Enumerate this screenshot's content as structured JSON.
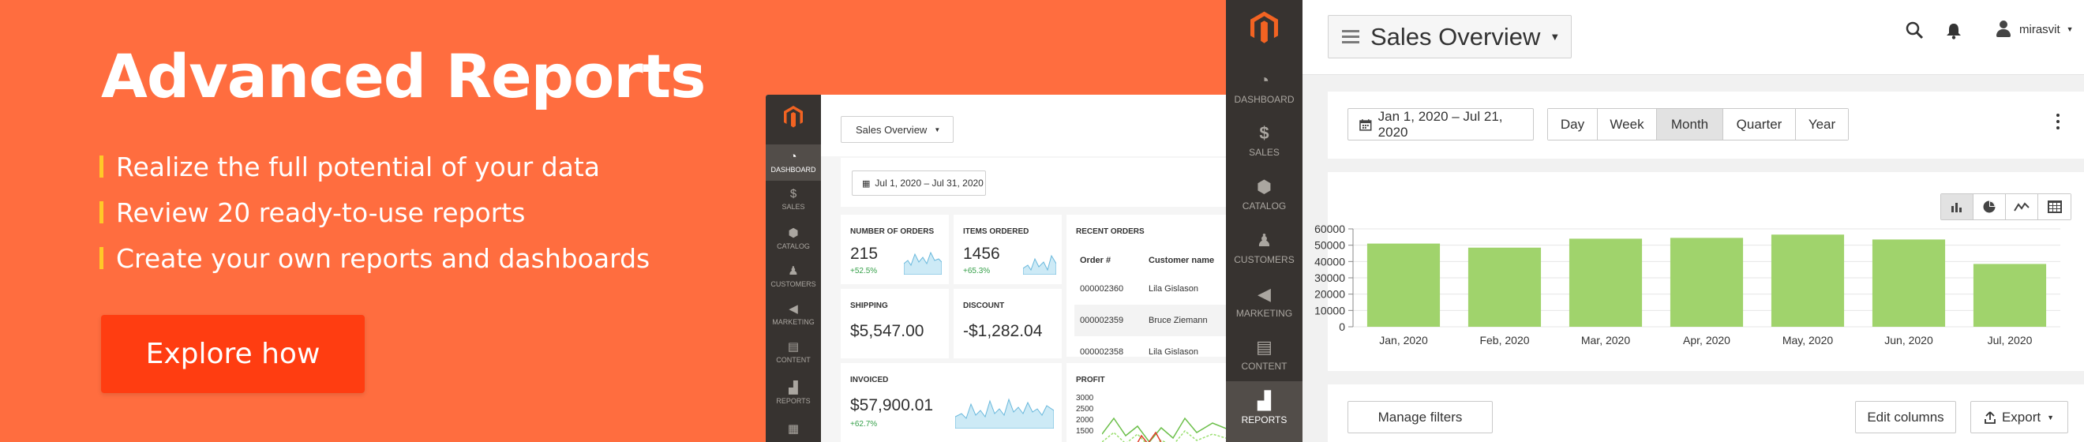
{
  "hero": {
    "title": "Advanced Reports",
    "bullets": [
      "Realize the full potential of your data",
      "Review 20 ready-to-use reports",
      "Create your own reports and dashboards"
    ],
    "cta_label": "Explore how"
  },
  "colors": {
    "background": "#ff6d3f",
    "cta": "#ff3d11",
    "bullet_bar": "#ffc928",
    "sidebar": "#373330",
    "bar_fill": "#a0d36c",
    "positive": "#36a04a"
  },
  "mock": {
    "nav": [
      {
        "label": "DASHBOARD",
        "icon": "gauge-icon",
        "active": true
      },
      {
        "label": "SALES",
        "icon": "dollar-icon"
      },
      {
        "label": "CATALOG",
        "icon": "box-icon"
      },
      {
        "label": "CUSTOMERS",
        "icon": "person-icon"
      },
      {
        "label": "MARKETING",
        "icon": "megaphone-icon"
      },
      {
        "label": "CONTENT",
        "icon": "layout-icon"
      },
      {
        "label": "REPORTS",
        "icon": "bar-chart-icon"
      }
    ],
    "report_select": "Sales Overview",
    "date_range": "Jul 1, 2020 – Jul 31, 2020",
    "cards": {
      "orders": {
        "label": "NUMBER OF ORDERS",
        "value": "215",
        "change": "+52.5%"
      },
      "items": {
        "label": "ITEMS ORDERED",
        "value": "1456",
        "change": "+65.3%"
      },
      "shipping": {
        "label": "SHIPPING",
        "value": "$5,547.00"
      },
      "discount": {
        "label": "DISCOUNT",
        "value": "-$1,282.04"
      },
      "invoiced": {
        "label": "INVOICED",
        "value": "$57,900.01",
        "change": "+62.7%"
      }
    },
    "recent_orders": {
      "label": "RECENT ORDERS",
      "columns": [
        "Order #",
        "Customer name"
      ],
      "rows": [
        [
          "000002360",
          "Lila Gislason"
        ],
        [
          "000002359",
          "Bruce Ziemann"
        ],
        [
          "000002358",
          "Lila Gislason"
        ]
      ]
    },
    "profit": {
      "label": "PROFIT",
      "ticks": [
        "3000",
        "2500",
        "2000",
        "1500"
      ]
    }
  },
  "sidebar": {
    "items": [
      {
        "label": "DASHBOARD",
        "icon": "gauge-icon"
      },
      {
        "label": "SALES",
        "icon": "dollar-icon"
      },
      {
        "label": "CATALOG",
        "icon": "box-icon"
      },
      {
        "label": "CUSTOMERS",
        "icon": "person-icon"
      },
      {
        "label": "MARKETING",
        "icon": "megaphone-icon"
      },
      {
        "label": "CONTENT",
        "icon": "layout-icon"
      },
      {
        "label": "REPORTS",
        "icon": "bar-chart-icon",
        "active": true
      }
    ]
  },
  "app": {
    "title": "Sales Overview",
    "username": "mirasvit",
    "date_range": "Jan 1, 2020 – Jul 21, 2020",
    "periods": [
      "Day",
      "Week",
      "Month",
      "Quarter",
      "Year"
    ],
    "active_period": "Month",
    "view_toggles": [
      "bar-chart-icon",
      "pie-chart-icon",
      "line-chart-icon",
      "table-icon"
    ],
    "buttons": {
      "manage_filters": "Manage filters",
      "edit_columns": "Edit columns",
      "export": "Export"
    }
  },
  "chart_data": {
    "type": "bar",
    "categories": [
      "Jan, 2020",
      "Feb, 2020",
      "Mar, 2020",
      "Apr, 2020",
      "May, 2020",
      "Jun, 2020",
      "Jul, 2020"
    ],
    "values": [
      51000,
      48500,
      54000,
      54500,
      56500,
      53500,
      38500
    ],
    "yticks": [
      0,
      10000,
      20000,
      30000,
      40000,
      50000,
      60000
    ],
    "ylim": [
      0,
      60000
    ],
    "grid": true,
    "legend": "none"
  }
}
